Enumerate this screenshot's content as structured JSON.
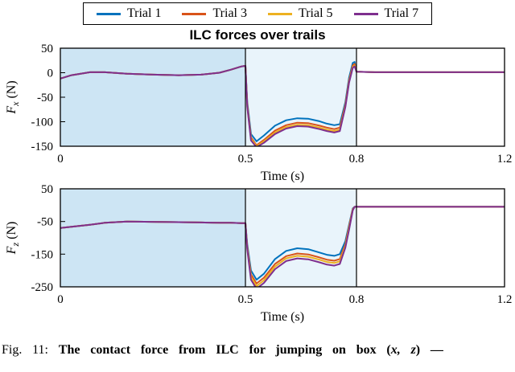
{
  "figure": {
    "title": "ILC forces over trails",
    "caption": {
      "prefix": "Fig. 11: ",
      "bold": "The contact force from ILC for jumping on box (",
      "math": "x, z",
      "suffix": ") —"
    }
  },
  "legend": {
    "items": [
      {
        "label": "Trial 1",
        "color": "#0072BD"
      },
      {
        "label": "Trial 3",
        "color": "#D95319"
      },
      {
        "label": "Trial 5",
        "color": "#EDB120"
      },
      {
        "label": "Trial 7",
        "color": "#7E2F8E"
      }
    ]
  },
  "chart_data": [
    {
      "type": "line",
      "name": "fx-subplot",
      "xlabel": "Time (s)",
      "ylabel": {
        "sym": "F",
        "sub": "x",
        "unit": "(N)"
      },
      "xlim": [
        0,
        1.2
      ],
      "ylim": [
        -150,
        50
      ],
      "xticks": [
        {
          "v": 0,
          "label": "0"
        },
        {
          "v": 0.5,
          "label": "0.5"
        },
        {
          "v": 0.8,
          "label": "0.8"
        },
        {
          "v": 1.2,
          "label": "1.2"
        }
      ],
      "yticks": [
        {
          "v": 50,
          "label": "50"
        },
        {
          "v": 0,
          "label": "0"
        },
        {
          "v": -50,
          "label": "-50"
        },
        {
          "v": -100,
          "label": "-100"
        },
        {
          "v": -150,
          "label": "-150"
        }
      ],
      "regions": [
        {
          "x0": 0,
          "x1": 0.5,
          "color": "#cde5f4"
        },
        {
          "x0": 0.5,
          "x1": 0.8,
          "color": "#e9f4fb"
        }
      ],
      "vlines": [
        0.5,
        0.8
      ],
      "x": [
        0,
        0.03,
        0.08,
        0.12,
        0.18,
        0.25,
        0.32,
        0.38,
        0.43,
        0.46,
        0.49,
        0.5,
        0.505,
        0.515,
        0.53,
        0.55,
        0.58,
        0.61,
        0.64,
        0.67,
        0.7,
        0.72,
        0.74,
        0.755,
        0.77,
        0.78,
        0.79,
        0.795,
        0.8,
        0.85,
        1.2
      ],
      "series": [
        {
          "name": "Trial 1",
          "color": "#0072BD",
          "values": [
            -12,
            -5,
            1,
            1,
            -2,
            -4,
            -5,
            -4,
            0,
            6,
            13,
            14,
            -60,
            -125,
            -140,
            -128,
            -108,
            -97,
            -93,
            -94,
            -99,
            -104,
            -107,
            -105,
            -60,
            -10,
            20,
            22,
            2,
            1,
            1
          ]
        },
        {
          "name": "Trial 3",
          "color": "#D95319",
          "values": [
            -12,
            -5,
            1,
            1,
            -2,
            -4,
            -5,
            -4,
            0,
            6,
            13,
            14,
            -65,
            -132,
            -148,
            -137,
            -118,
            -107,
            -102,
            -103,
            -108,
            -112,
            -115,
            -112,
            -65,
            -15,
            15,
            18,
            2,
            1,
            1
          ]
        },
        {
          "name": "Trial 5",
          "color": "#EDB120",
          "values": [
            -12,
            -5,
            1,
            1,
            -2,
            -4,
            -5,
            -4,
            0,
            6,
            13,
            14,
            -68,
            -135,
            -150,
            -140,
            -122,
            -111,
            -106,
            -107,
            -112,
            -116,
            -119,
            -116,
            -68,
            -18,
            12,
            15,
            2,
            1,
            1
          ]
        },
        {
          "name": "Trial 7",
          "color": "#7E2F8E",
          "values": [
            -12,
            -5,
            1,
            1,
            -2,
            -4,
            -5,
            -4,
            0,
            6,
            13,
            14,
            -70,
            -138,
            -152,
            -143,
            -125,
            -114,
            -109,
            -110,
            -115,
            -119,
            -122,
            -119,
            -70,
            -20,
            10,
            13,
            2,
            1,
            1
          ]
        }
      ]
    },
    {
      "type": "line",
      "name": "fz-subplot",
      "xlabel": "Time (s)",
      "ylabel": {
        "sym": "F",
        "sub": "z",
        "unit": "(N)"
      },
      "xlim": [
        0,
        1.2
      ],
      "ylim": [
        -250,
        50
      ],
      "xticks": [
        {
          "v": 0,
          "label": "0"
        },
        {
          "v": 0.5,
          "label": "0.5"
        },
        {
          "v": 0.8,
          "label": "0.8"
        },
        {
          "v": 1.2,
          "label": "1.2"
        }
      ],
      "yticks": [
        {
          "v": 50,
          "label": "50"
        },
        {
          "v": -50,
          "label": "-50"
        },
        {
          "v": -150,
          "label": "-150"
        },
        {
          "v": -250,
          "label": "-250"
        }
      ],
      "regions": [
        {
          "x0": 0,
          "x1": 0.5,
          "color": "#cde5f4"
        },
        {
          "x0": 0.5,
          "x1": 0.8,
          "color": "#e9f4fb"
        }
      ],
      "vlines": [
        0.5,
        0.8
      ],
      "x": [
        0,
        0.03,
        0.08,
        0.12,
        0.18,
        0.25,
        0.32,
        0.38,
        0.43,
        0.46,
        0.49,
        0.5,
        0.505,
        0.515,
        0.53,
        0.55,
        0.58,
        0.61,
        0.64,
        0.67,
        0.7,
        0.72,
        0.74,
        0.755,
        0.77,
        0.78,
        0.79,
        0.795,
        0.8,
        0.85,
        1.2
      ],
      "series": [
        {
          "name": "Trial 1",
          "color": "#0072BD",
          "values": [
            -70,
            -66,
            -60,
            -54,
            -50,
            -51,
            -52,
            -53,
            -54,
            -54,
            -55,
            -55,
            -120,
            -200,
            -228,
            -210,
            -165,
            -140,
            -132,
            -135,
            -145,
            -152,
            -155,
            -150,
            -110,
            -60,
            -10,
            -5,
            -5,
            -5,
            -5
          ]
        },
        {
          "name": "Trial 3",
          "color": "#D95319",
          "values": [
            -70,
            -66,
            -60,
            -54,
            -50,
            -51,
            -52,
            -53,
            -54,
            -54,
            -55,
            -55,
            -128,
            -212,
            -240,
            -222,
            -180,
            -156,
            -148,
            -151,
            -160,
            -167,
            -170,
            -165,
            -120,
            -65,
            -12,
            -5,
            -5,
            -5,
            -5
          ]
        },
        {
          "name": "Trial 5",
          "color": "#EDB120",
          "values": [
            -70,
            -66,
            -60,
            -54,
            -50,
            -51,
            -52,
            -53,
            -54,
            -54,
            -55,
            -55,
            -132,
            -220,
            -248,
            -230,
            -188,
            -163,
            -155,
            -158,
            -167,
            -174,
            -177,
            -172,
            -125,
            -70,
            -14,
            -5,
            -5,
            -5,
            -5
          ]
        },
        {
          "name": "Trial 7",
          "color": "#7E2F8E",
          "values": [
            -70,
            -66,
            -60,
            -54,
            -50,
            -51,
            -52,
            -53,
            -54,
            -54,
            -55,
            -55,
            -136,
            -228,
            -256,
            -238,
            -196,
            -171,
            -163,
            -166,
            -175,
            -182,
            -185,
            -180,
            -130,
            -75,
            -16,
            -5,
            -5,
            -5,
            -5
          ]
        }
      ]
    }
  ]
}
